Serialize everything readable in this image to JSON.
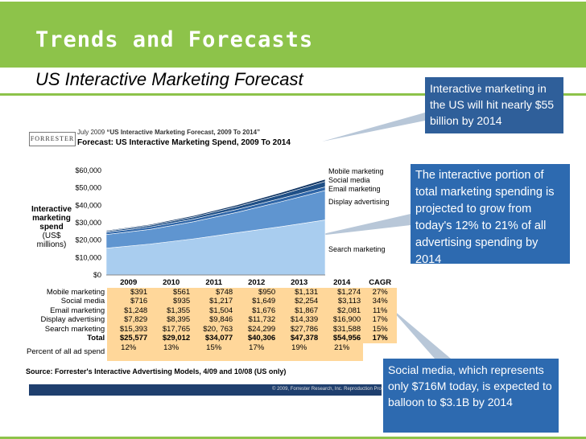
{
  "slide": {
    "title": "Trends and Forecasts",
    "subtitle": "US Interactive Marketing Forecast",
    "callouts": [
      "Interactive marketing in the US will hit nearly $55 billion by 2014",
      "The interactive portion of total marketing spending is projected to grow from today's 12% to 21% of all advertising spending by 2014",
      "Social media, which represents only $716M today, is expected to balloon to $3.1B by 2014"
    ],
    "colors": {
      "accent": "#8dc34a",
      "callout": "#2d6ab0",
      "highlight": "#ffd79a"
    }
  },
  "figure": {
    "logo": "FORRESTER",
    "header_date": "July 2009",
    "header_report": "“US Interactive Marketing Forecast, 2009 To 2014”",
    "header_title": "Forecast: US Interactive Marketing Spend, 2009 To 2014",
    "source": "Source: Forrester's Interactive Advertising Models, 4/09 and 10/08 (US only)",
    "copyright": "© 2009, Forrester Research, Inc. Reproduction Pro"
  },
  "chart_data": {
    "type": "area",
    "stacked": true,
    "x": [
      "2009",
      "2010",
      "2011",
      "2012",
      "2013",
      "2014"
    ],
    "ylabel": "Interactive marketing spend",
    "ylabel_unit": "(US$ millions)",
    "ylim": [
      0,
      60000
    ],
    "y_ticks": [
      "$0",
      "$10,000",
      "$20,000",
      "$30,000",
      "$40,000",
      "$50,000",
      "$60,000"
    ],
    "legend_placement": "right",
    "series": [
      {
        "name": "Search marketing",
        "values": [
          15393,
          17765,
          20763,
          24299,
          27786,
          31588
        ],
        "labels": [
          "$15,393",
          "$17,765",
          "$20, 763",
          "$24,299",
          "$27,786",
          "$31,588"
        ],
        "color": "#a9cdef"
      },
      {
        "name": "Display advertising",
        "values": [
          7829,
          8395,
          9846,
          11732,
          14339,
          16900
        ],
        "labels": [
          "$7,829",
          "$8,395",
          "$9,846",
          "$11,732",
          "$14,339",
          "$16,900"
        ],
        "color": "#5f95d0"
      },
      {
        "name": "Email marketing",
        "values": [
          1248,
          1355,
          1504,
          1676,
          1867,
          2081
        ],
        "labels": [
          "$1,248",
          "$1,355",
          "$1,504",
          "$1,676",
          "$1,867",
          "$2,081"
        ],
        "color": "#2f66a8"
      },
      {
        "name": "Social media",
        "values": [
          716,
          935,
          1217,
          1649,
          2254,
          3113
        ],
        "labels": [
          "$716",
          "$935",
          "$1,217",
          "$1,649",
          "$2,254",
          "$3,113"
        ],
        "color": "#1f4f86"
      },
      {
        "name": "Mobile marketing",
        "values": [
          391,
          561,
          748,
          950,
          1131,
          1274
        ],
        "labels": [
          "$391",
          "$561",
          "$748",
          "$950",
          "$1,131",
          "$1,274"
        ],
        "color": "#0f3463"
      }
    ],
    "cagr_header": "CAGR",
    "cagr": {
      "Mobile marketing": "27%",
      "Social media": "34%",
      "Email marketing": "11%",
      "Display advertising": "17%",
      "Search marketing": "15%",
      "Total": "17%"
    },
    "total_label": "Total",
    "totals": [
      "$25,577",
      "$29,012",
      "$34,077",
      "$40,306",
      "$47,378",
      "$54,956"
    ],
    "percent_label": "Percent of all ad spend",
    "percent_of_ad_spend": [
      "12%",
      "13%",
      "15%",
      "17%",
      "19%",
      "21%"
    ]
  }
}
